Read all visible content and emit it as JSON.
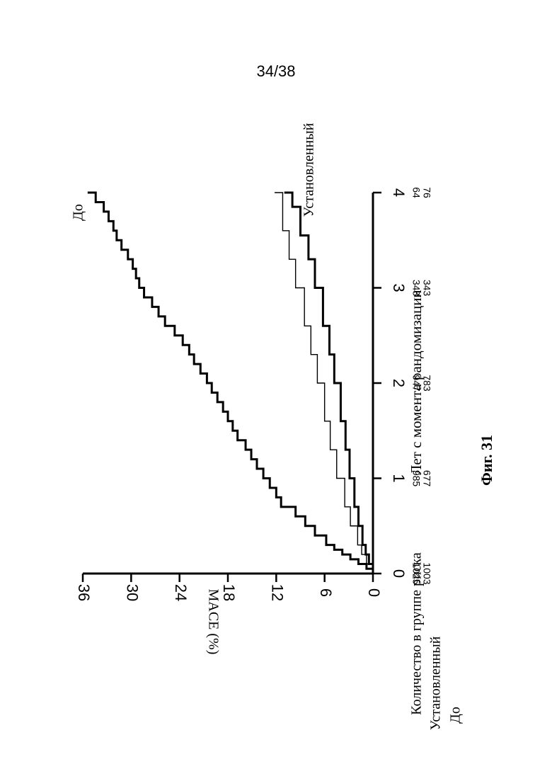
{
  "page": {
    "number": "34/38"
  },
  "figure": {
    "caption": "Фиг. 31"
  },
  "chart_data": {
    "type": "line",
    "xlabel": "Лет с момента рандомизации",
    "ylabel": "MACE (%)",
    "xlim": [
      0,
      4
    ],
    "ylim": [
      0,
      36
    ],
    "x_ticks": [
      0,
      1,
      2,
      3,
      4
    ],
    "y_ticks": [
      0,
      6,
      12,
      18,
      24,
      30,
      36
    ],
    "grid": false,
    "legend": "none",
    "series": [
      {
        "name": "До",
        "color": "#000000",
        "x": [
          0,
          0.05,
          0.1,
          0.15,
          0.2,
          0.25,
          0.3,
          0.4,
          0.5,
          0.6,
          0.7,
          0.8,
          0.9,
          1.0,
          1.1,
          1.2,
          1.3,
          1.4,
          1.5,
          1.6,
          1.7,
          1.8,
          1.9,
          2.0,
          2.1,
          2.2,
          2.3,
          2.4,
          2.5,
          2.6,
          2.7,
          2.8,
          2.9,
          3.0,
          3.1,
          3.2,
          3.3,
          3.4,
          3.5,
          3.6,
          3.7,
          3.8,
          3.9,
          4.0
        ],
        "values": [
          0,
          0.8,
          1.8,
          2.8,
          3.8,
          4.8,
          5.8,
          7.2,
          8.4,
          9.6,
          11.4,
          12.0,
          12.8,
          13.6,
          14.4,
          15.1,
          15.8,
          16.8,
          17.4,
          18.0,
          18.6,
          19.3,
          20.0,
          20.6,
          21.4,
          22.2,
          22.8,
          23.6,
          24.6,
          25.8,
          26.6,
          27.4,
          28.4,
          29.0,
          29.4,
          29.8,
          30.4,
          31.2,
          31.8,
          32.2,
          32.8,
          33.4,
          34.4,
          35.4
        ]
      },
      {
        "name": "",
        "color": "#000000",
        "x": [
          0,
          0.1,
          0.2,
          0.3,
          0.5,
          0.7,
          1.0,
          1.3,
          1.6,
          2.0,
          2.3,
          2.6,
          3.0,
          3.3,
          3.6,
          4.0
        ],
        "values": [
          0,
          0.8,
          1.4,
          1.9,
          2.8,
          3.5,
          4.5,
          5.3,
          6.0,
          6.9,
          7.7,
          8.5,
          9.6,
          10.4,
          11.2,
          12.2
        ]
      },
      {
        "name": "Установленный",
        "color": "#000000",
        "x": [
          0,
          0.1,
          0.2,
          0.3,
          0.5,
          0.7,
          1.0,
          1.3,
          1.6,
          2.0,
          2.3,
          2.6,
          3.0,
          3.3,
          3.55,
          3.85,
          4.0
        ],
        "values": [
          0,
          0.5,
          0.9,
          1.3,
          1.8,
          2.3,
          2.9,
          3.4,
          4.0,
          4.8,
          5.4,
          6.2,
          7.2,
          8.0,
          9.0,
          10.0,
          11.0
        ]
      }
    ]
  },
  "risk_table": {
    "title": "Количество в группе риска",
    "rows": [
      {
        "label": "Установленный",
        "values": [
          "1025",
          "985",
          "947",
          "348",
          "64"
        ]
      },
      {
        "label": "До",
        "values": [
          "1003",
          "677",
          "783",
          "343",
          "76"
        ]
      }
    ]
  }
}
